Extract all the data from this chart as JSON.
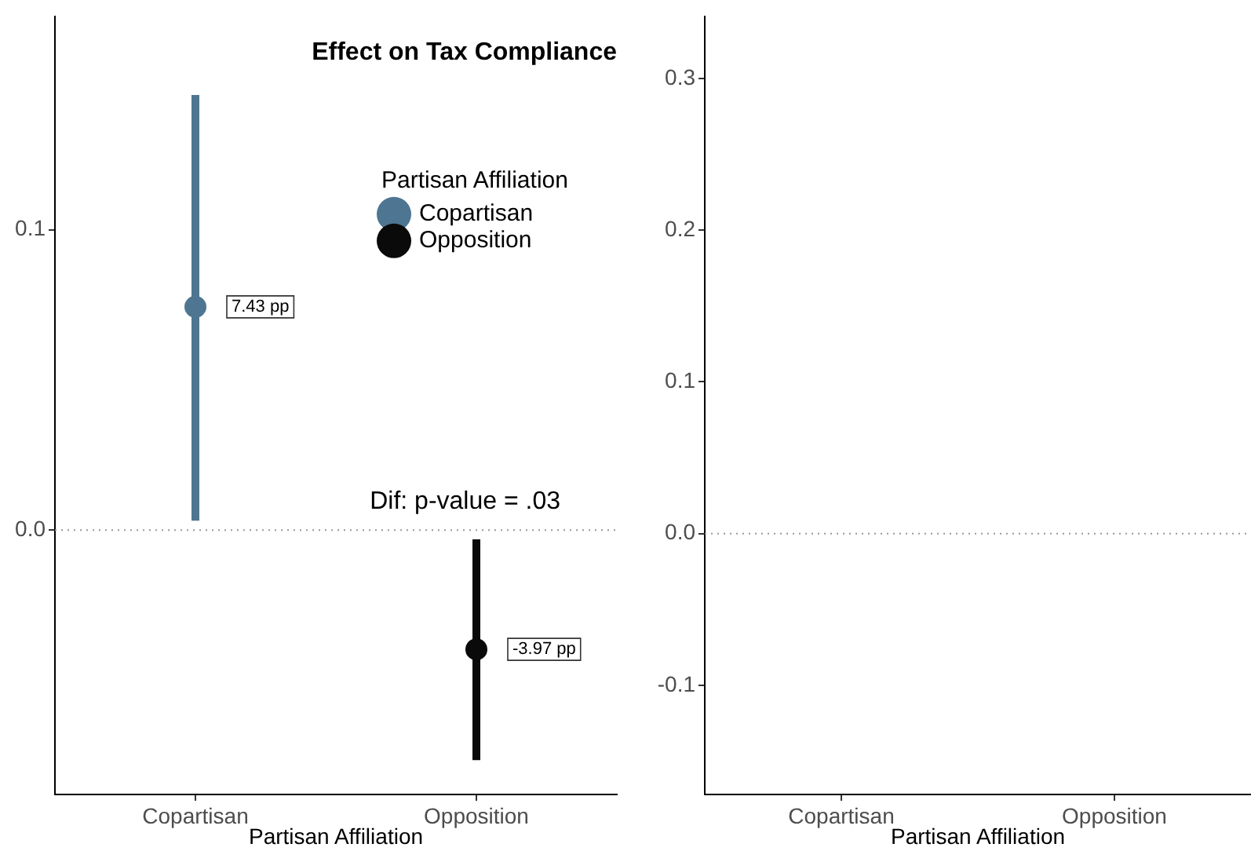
{
  "chart_data": [
    {
      "type": "scatter",
      "title": "Effect on Tax Compliance",
      "xlabel": "Partisan Affiliation",
      "legend_title": "Partisan Affiliation",
      "legend": "top right",
      "marker": "circle",
      "grid": false,
      "categories": [
        "Copartisan",
        "Opposition"
      ],
      "series": [
        {
          "name": "Copartisan",
          "color": "#4e7591",
          "values": [
            0.0743,
            null
          ],
          "errors": [
            [
              0.0031,
              0.1448
            ],
            null
          ]
        },
        {
          "name": "Opposition",
          "color": "#0a0a0a",
          "values": [
            null,
            -0.0397
          ],
          "errors": [
            null,
            [
              -0.0766,
              -0.0031
            ]
          ]
        }
      ],
      "ylim": [
        -0.088,
        0.171
      ],
      "yticks": [
        {
          "value": 0,
          "label": "0.0"
        },
        0.1
      ],
      "ref_lines": [
        {
          "axis": "y",
          "value": 0,
          "color": "#999999",
          "line_style": "dotted"
        }
      ],
      "annotations": [
        {
          "text": "7.43 pp",
          "x": "Copartisan",
          "y": 0.0743
        },
        {
          "text": "-3.97 pp",
          "x": "Opposition",
          "y": -0.0397
        },
        "Dif: p-value = .03"
      ]
    },
    {
      "type": "scatter",
      "xlabel": "Partisan Affiliation",
      "grid": false,
      "categories": [
        "Copartisan",
        "Opposition"
      ],
      "ylim": [
        -0.172,
        0.341
      ],
      "yticks": [
        -0.1,
        {
          "value": 0,
          "label": "0.0"
        },
        0.1,
        0.2,
        0.3
      ],
      "ref_lines": [
        {
          "axis": "y",
          "value": 0,
          "color": "#999999",
          "line_style": "dotted"
        }
      ]
    }
  ]
}
